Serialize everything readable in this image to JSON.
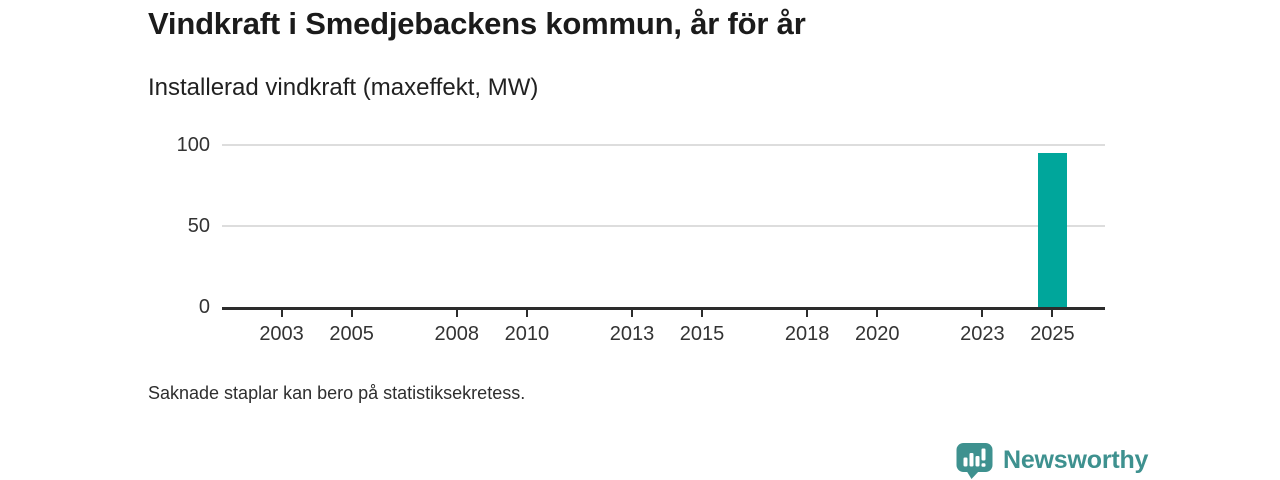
{
  "header": {
    "title": "Vindkraft i Smedjebackens kommun, år för år",
    "subtitle": "Installerad vindkraft (maxeffekt, MW)"
  },
  "footer": {
    "note": "Saknade staplar kan bero på statistiksekretess.",
    "logo_text": "Newsworthy",
    "logo_icon": "bar-chart-speech-bubble-icon",
    "logo_color": "#3e918f"
  },
  "chart_data": {
    "type": "bar",
    "title": "Vindkraft i Smedjebackens kommun, år för år",
    "subtitle": "Installerad vindkraft (maxeffekt, MW)",
    "series": [
      {
        "name": "Installerad vindkraft (maxeffekt, MW)",
        "points": [
          {
            "x": 2025,
            "y": 95
          }
        ]
      }
    ],
    "xticks": [
      2003,
      2005,
      2008,
      2010,
      2013,
      2015,
      2018,
      2020,
      2023,
      2025
    ],
    "yticks": [
      0,
      50,
      100
    ],
    "xlim": [
      2001.3,
      2026.5
    ],
    "ylim": [
      0,
      100
    ],
    "grid": "horizontal-only",
    "legend": "none",
    "bar_color": "#00a69b",
    "bar_rel_width": 0.82,
    "axis_color": "#2c2c2c",
    "gridline_color": "#dddddd",
    "note": "Saknade staplar kan bero på statistiksekretess."
  }
}
